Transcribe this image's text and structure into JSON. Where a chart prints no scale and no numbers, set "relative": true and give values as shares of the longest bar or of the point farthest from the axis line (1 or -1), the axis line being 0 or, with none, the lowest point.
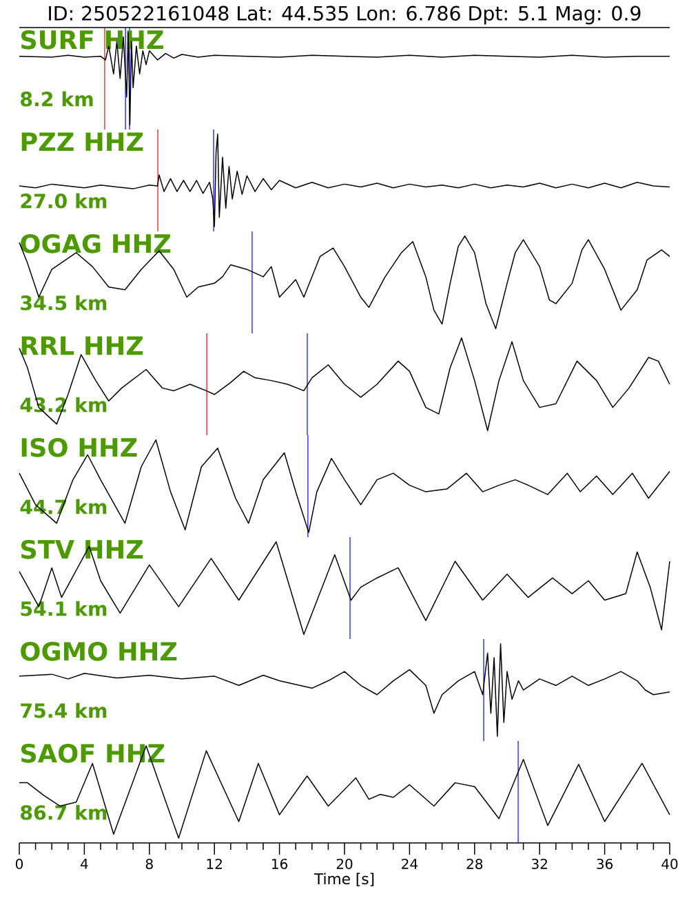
{
  "chart_data": [
    {
      "type": "other",
      "title": "ID: 250522161048 Lat:  44.535 Lon:   6.786 Dpt:     5.1 Mag:   0.9"
    },
    {
      "type": "line",
      "title": "SURF HHZ",
      "annotations": [
        "8.2 km"
      ],
      "relative": true,
      "xlim": [
        0,
        40
      ],
      "tick_labels": false,
      "x": [
        0,
        2,
        3,
        4,
        5,
        5.3,
        5.5,
        5.8,
        6.0,
        6.2,
        6.4,
        6.6,
        6.7,
        6.8,
        6.9,
        7.0,
        7.2,
        7.4,
        7.6,
        7.8,
        8.0,
        8.5,
        9,
        9.5,
        10,
        11,
        12,
        14,
        16,
        18,
        20,
        22,
        24,
        26,
        28,
        30,
        32,
        34,
        36,
        38,
        40
      ],
      "series": [
        {
          "color": "#000000",
          "values": [
            0.74,
            0.73,
            0.75,
            0.73,
            0.74,
            0.7,
            0.85,
            0.55,
            0.9,
            0.5,
            0.95,
            0.3,
            1.0,
            0.0,
            0.9,
            0.4,
            0.85,
            0.55,
            0.8,
            0.65,
            0.8,
            0.7,
            0.77,
            0.72,
            0.76,
            0.73,
            0.75,
            0.74,
            0.73,
            0.75,
            0.74,
            0.73,
            0.75,
            0.73,
            0.75,
            0.74,
            0.73,
            0.75,
            0.73,
            0.74,
            0.74
          ]
        }
      ],
      "ref_lines": [
        {
          "axis": "x",
          "value": 5.25,
          "color": "#ff0000"
        },
        {
          "axis": "x",
          "value": 6.53,
          "color": "#0000ff"
        },
        {
          "axis": "x",
          "value": 6.78,
          "color": "#0000ff"
        }
      ]
    },
    {
      "type": "line",
      "title": "PZZ HHZ",
      "annotations": [
        "27.0 km"
      ],
      "relative": true,
      "xlim": [
        0,
        40
      ],
      "tick_labels": false,
      "x": [
        0,
        1,
        2,
        3,
        4,
        5,
        6,
        7,
        8,
        8.5,
        8.6,
        8.9,
        9.3,
        9.7,
        10.1,
        10.5,
        10.9,
        11.3,
        11.7,
        11.9,
        12.0,
        12.1,
        12.2,
        12.3,
        12.5,
        12.7,
        12.9,
        13.1,
        13.4,
        13.7,
        14,
        14.5,
        15,
        15.5,
        16,
        17,
        18,
        19,
        20,
        21,
        22,
        23,
        24,
        25,
        26,
        27,
        28,
        29,
        30,
        31,
        32,
        33,
        34,
        35,
        36,
        37,
        38,
        39,
        40
      ],
      "series": [
        {
          "color": "#000000",
          "values": [
            0.44,
            0.42,
            0.46,
            0.44,
            0.42,
            0.45,
            0.43,
            0.41,
            0.45,
            0.44,
            0.56,
            0.38,
            0.52,
            0.38,
            0.5,
            0.38,
            0.5,
            0.36,
            0.48,
            0.3,
            0.0,
            0.8,
            1.0,
            0.1,
            0.75,
            0.2,
            0.65,
            0.3,
            0.6,
            0.35,
            0.55,
            0.38,
            0.52,
            0.4,
            0.5,
            0.42,
            0.48,
            0.42,
            0.46,
            0.43,
            0.47,
            0.42,
            0.46,
            0.43,
            0.45,
            0.42,
            0.46,
            0.42,
            0.45,
            0.43,
            0.47,
            0.42,
            0.46,
            0.42,
            0.47,
            0.42,
            0.48,
            0.44,
            0.43
          ]
        }
      ],
      "ref_lines": [
        {
          "axis": "x",
          "value": 8.52,
          "color": "#ff0000"
        },
        {
          "axis": "x",
          "value": 11.95,
          "color": "#0000ff"
        }
      ]
    },
    {
      "type": "line",
      "title": "OGAG HHZ",
      "annotations": [
        "34.5 km"
      ],
      "relative": true,
      "xlim": [
        0,
        40
      ],
      "tick_labels": false,
      "x": [
        0,
        0.5,
        1.2,
        2,
        3.5,
        4.5,
        5.5,
        6.5,
        7.5,
        8.6,
        9.5,
        10.3,
        11,
        12,
        12.5,
        13,
        14,
        15,
        15.5,
        16,
        17,
        17.5,
        18.5,
        19.3,
        20,
        21,
        21.5,
        22.5,
        23.5,
        24.2,
        25,
        25.5,
        26,
        26.5,
        27,
        27.4,
        28,
        28.7,
        29.3,
        30,
        30.5,
        31,
        32,
        32.6,
        33,
        34,
        34.6,
        35,
        36,
        37,
        38,
        38.6,
        39.5,
        40
      ],
      "series": [
        {
          "color": "#000000",
          "values": [
            0.93,
            0.71,
            0.34,
            0.64,
            0.82,
            0.67,
            0.45,
            0.42,
            0.64,
            0.84,
            0.64,
            0.34,
            0.45,
            0.49,
            0.56,
            0.69,
            0.64,
            0.56,
            0.67,
            0.34,
            0.53,
            0.34,
            0.78,
            0.87,
            0.67,
            0.34,
            0.23,
            0.56,
            0.82,
            0.94,
            0.56,
            0.2,
            0.05,
            0.49,
            0.89,
            1.0,
            0.82,
            0.27,
            0.0,
            0.49,
            0.82,
            0.96,
            0.67,
            0.31,
            0.27,
            0.49,
            0.85,
            0.96,
            0.64,
            0.2,
            0.42,
            0.74,
            0.85,
            0.78
          ]
        }
      ],
      "ref_lines": [
        {
          "axis": "x",
          "value": 14.32,
          "color": "#0000ff"
        }
      ]
    },
    {
      "type": "line",
      "title": "RRL HHZ",
      "annotations": [
        "43.2 km"
      ],
      "relative": true,
      "xlim": [
        0,
        40
      ],
      "tick_labels": false,
      "x": [
        0,
        0.5,
        1.2,
        2.3,
        3,
        3.8,
        4.7,
        5.5,
        6.3,
        7.8,
        8.8,
        9.5,
        10.5,
        11.5,
        12,
        13,
        13.8,
        14.5,
        15.5,
        16.5,
        17.5,
        18,
        19,
        20,
        21,
        22,
        23.3,
        24,
        25,
        25.8,
        26.5,
        27.2,
        28,
        28.8,
        29.5,
        30.3,
        31,
        32,
        33,
        34.3,
        35.5,
        36.5,
        37.5,
        38.7,
        39.3,
        40
      ],
      "series": [
        {
          "color": "#000000",
          "values": [
            0.89,
            0.68,
            0.25,
            0.07,
            0.39,
            0.82,
            0.54,
            0.32,
            0.46,
            0.66,
            0.46,
            0.43,
            0.5,
            0.43,
            0.39,
            0.52,
            0.64,
            0.57,
            0.54,
            0.5,
            0.43,
            0.57,
            0.71,
            0.5,
            0.36,
            0.5,
            0.75,
            0.64,
            0.25,
            0.18,
            0.68,
            1.0,
            0.54,
            0.0,
            0.54,
            0.96,
            0.54,
            0.25,
            0.29,
            0.75,
            0.54,
            0.25,
            0.46,
            0.79,
            0.75,
            0.5
          ]
        }
      ],
      "ref_lines": [
        {
          "axis": "x",
          "value": 11.53,
          "color": "#ff0000"
        },
        {
          "axis": "x",
          "value": 17.71,
          "color": "#0000ff"
        }
      ]
    },
    {
      "type": "line",
      "title": "ISO HHZ",
      "annotations": [
        "44.7 km"
      ],
      "relative": true,
      "xlim": [
        0,
        40
      ],
      "tick_labels": false,
      "x": [
        0,
        1,
        2.3,
        3.3,
        4.2,
        5,
        6.5,
        7.5,
        8.4,
        9.3,
        10.2,
        11.2,
        12.2,
        13.3,
        14.1,
        15,
        16.3,
        17,
        17.8,
        18.3,
        19.2,
        20,
        21,
        22,
        23,
        24,
        25,
        26.3,
        27.5,
        28.5,
        29.5,
        30.5,
        31.3,
        32.5,
        33.7,
        34.5,
        35.5,
        36.5,
        37.7,
        38.7,
        40
      ],
      "series": [
        {
          "color": "#000000",
          "values": [
            0.64,
            0.3,
            0.1,
            0.57,
            0.84,
            0.57,
            0.1,
            0.71,
            1.0,
            0.44,
            0.03,
            0.71,
            0.91,
            0.37,
            0.1,
            0.57,
            0.86,
            0.44,
            0.0,
            0.44,
            0.8,
            0.57,
            0.3,
            0.57,
            0.64,
            0.51,
            0.44,
            0.47,
            0.64,
            0.44,
            0.51,
            0.57,
            0.51,
            0.41,
            0.64,
            0.44,
            0.61,
            0.41,
            0.64,
            0.37,
            0.66
          ]
        }
      ],
      "ref_lines": [
        {
          "axis": "x",
          "value": 17.75,
          "color": "#0000ff"
        }
      ]
    },
    {
      "type": "line",
      "title": "STV HHZ",
      "annotations": [
        "54.1 km"
      ],
      "relative": true,
      "xlim": [
        0,
        40
      ],
      "tick_labels": false,
      "x": [
        0,
        1.2,
        2,
        2.6,
        4.3,
        5,
        6.2,
        8,
        9.8,
        11.8,
        13.5,
        15.8,
        17.5,
        19.4,
        20.4,
        21,
        22,
        23.3,
        25,
        26.8,
        28.5,
        30,
        31.3,
        32.8,
        34,
        35,
        36,
        37.3,
        38,
        38.8,
        39.5,
        40
      ],
      "series": [
        {
          "color": "#000000",
          "values": [
            0.68,
            0.3,
            0.72,
            0.4,
            0.95,
            0.58,
            0.23,
            0.75,
            0.3,
            0.82,
            0.37,
            1.0,
            0.0,
            0.86,
            0.37,
            0.51,
            0.61,
            0.72,
            0.15,
            0.79,
            0.37,
            0.65,
            0.4,
            0.61,
            0.44,
            0.58,
            0.37,
            0.44,
            0.89,
            0.51,
            0.05,
            0.79
          ]
        }
      ],
      "ref_lines": [
        {
          "axis": "x",
          "value": 20.34,
          "color": "#0000ff"
        }
      ]
    },
    {
      "type": "line",
      "title": "OGMO HHZ",
      "annotations": [
        "75.4 km"
      ],
      "relative": true,
      "xlim": [
        0,
        40
      ],
      "tick_labels": false,
      "x": [
        0,
        2,
        3,
        4,
        6,
        8,
        10,
        12,
        13.5,
        15,
        16,
        18,
        19,
        20,
        21,
        22,
        23,
        24,
        25,
        25.5,
        26,
        27,
        28,
        28.5,
        28.8,
        29,
        29.2,
        29.4,
        29.6,
        29.8,
        30.0,
        30.3,
        30.7,
        31,
        32,
        33,
        34,
        35,
        36,
        37,
        38,
        38.5,
        39,
        40
      ],
      "series": [
        {
          "color": "#000000",
          "values": [
            0.65,
            0.67,
            0.62,
            0.68,
            0.63,
            0.66,
            0.62,
            0.65,
            0.55,
            0.66,
            0.6,
            0.52,
            0.6,
            0.7,
            0.55,
            0.45,
            0.6,
            0.72,
            0.55,
            0.25,
            0.45,
            0.6,
            0.7,
            0.45,
            0.9,
            0.25,
            0.85,
            0.0,
            1.0,
            0.15,
            0.7,
            0.4,
            0.6,
            0.5,
            0.62,
            0.55,
            0.65,
            0.55,
            0.62,
            0.7,
            0.6,
            0.5,
            0.45,
            0.48
          ]
        }
      ],
      "ref_lines": [
        {
          "axis": "x",
          "value": 28.56,
          "color": "#0000ff"
        }
      ]
    },
    {
      "type": "line",
      "title": "SAOF HHZ",
      "annotations": [
        "86.7 km"
      ],
      "relative": true,
      "xlim": [
        0,
        40
      ],
      "tick_labels": "x",
      "xlabel": "Time [s]",
      "xticks": [
        0,
        {
          "value": 1,
          "label": null
        },
        {
          "value": 2,
          "label": null
        },
        {
          "value": 3,
          "label": null
        },
        4,
        {
          "value": 5,
          "label": null
        },
        {
          "value": 6,
          "label": null
        },
        {
          "value": 7,
          "label": null
        },
        8,
        {
          "value": 9,
          "label": null
        },
        {
          "value": 10,
          "label": null
        },
        {
          "value": 11,
          "label": null
        },
        12,
        {
          "value": 13,
          "label": null
        },
        {
          "value": 14,
          "label": null
        },
        {
          "value": 15,
          "label": null
        },
        16,
        {
          "value": 17,
          "label": null
        },
        {
          "value": 18,
          "label": null
        },
        {
          "value": 19,
          "label": null
        },
        20,
        {
          "value": 21,
          "label": null
        },
        {
          "value": 22,
          "label": null
        },
        {
          "value": 23,
          "label": null
        },
        24,
        {
          "value": 25,
          "label": null
        },
        {
          "value": 26,
          "label": null
        },
        {
          "value": 27,
          "label": null
        },
        28,
        {
          "value": 29,
          "label": null
        },
        {
          "value": 30,
          "label": null
        },
        {
          "value": 31,
          "label": null
        },
        32,
        {
          "value": 33,
          "label": null
        },
        {
          "value": 34,
          "label": null
        },
        {
          "value": 35,
          "label": null
        },
        36,
        {
          "value": 37,
          "label": null
        },
        {
          "value": 38,
          "label": null
        },
        {
          "value": 39,
          "label": null
        },
        40
      ],
      "x": [
        0,
        0.5,
        1.5,
        2.5,
        3.5,
        4.5,
        5.8,
        7.8,
        9.8,
        11.5,
        13.5,
        14.7,
        16,
        17.7,
        19,
        20.7,
        21.5,
        22.2,
        23,
        24,
        25.5,
        26.8,
        28,
        29.5,
        31,
        32.5,
        34.4,
        36,
        38.3,
        40
      ],
      "series": [
        {
          "color": "#000000",
          "values": [
            0.62,
            0.62,
            0.49,
            0.38,
            0.42,
            0.82,
            0.09,
            1.0,
            0.05,
            0.95,
            0.22,
            0.82,
            0.29,
            0.69,
            0.38,
            0.67,
            0.45,
            0.5,
            0.47,
            0.6,
            0.38,
            0.62,
            0.58,
            0.25,
            0.86,
            0.18,
            0.81,
            0.22,
            0.82,
            0.29
          ]
        }
      ],
      "ref_lines": [
        {
          "axis": "x",
          "value": 30.68,
          "color": "#0000ff"
        }
      ]
    }
  ]
}
